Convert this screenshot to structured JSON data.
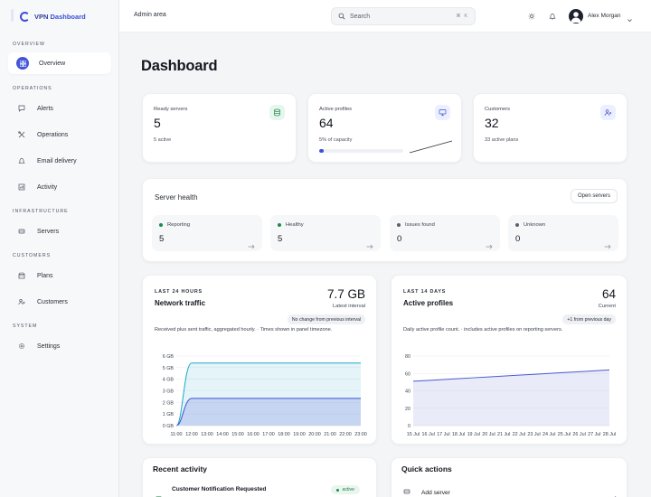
{
  "brand": {
    "name": "VPN",
    "accent": "Dashboard"
  },
  "sidebar": {
    "sections": [
      {
        "title": "OVERVIEW",
        "items": [
          {
            "label": "Overview",
            "icon": "grid-icon",
            "active": true
          }
        ]
      },
      {
        "title": "OPERATIONS",
        "items": [
          {
            "label": "Alerts",
            "icon": "chat-icon"
          },
          {
            "label": "Operations",
            "icon": "tools-icon"
          },
          {
            "label": "Email delivery",
            "icon": "bell-icon"
          },
          {
            "label": "Activity",
            "icon": "chart-icon"
          }
        ]
      },
      {
        "title": "INFRASTRUCTURE",
        "items": [
          {
            "label": "Servers",
            "icon": "server-icon"
          }
        ]
      },
      {
        "title": "CUSTOMERS",
        "items": [
          {
            "label": "Plans",
            "icon": "package-icon"
          },
          {
            "label": "Customers",
            "icon": "users-icon"
          }
        ]
      },
      {
        "title": "SYSTEM",
        "items": [
          {
            "label": "Settings",
            "icon": "gear-icon"
          }
        ]
      }
    ]
  },
  "topbar": {
    "title": "Admin area",
    "search_placeholder": "Search",
    "search_shortcut": "⌘ K",
    "user_name": "Alex Morgan"
  },
  "page": {
    "title": "Dashboard"
  },
  "stats": {
    "ready": {
      "label": "Ready servers",
      "value": "5",
      "sub": "5 active"
    },
    "profiles": {
      "label": "Active profiles",
      "value": "64",
      "sub": "5% of capacity",
      "progress": 0.05
    },
    "customers": {
      "label": "Customers",
      "value": "32",
      "sub": "33 active plans"
    }
  },
  "server_health": {
    "title": "Server health",
    "button": "Open servers",
    "tiles": [
      {
        "label": "Reporting",
        "value": "5",
        "color": "#1f8a4c"
      },
      {
        "label": "Healthy",
        "value": "5",
        "color": "#1f8a4c"
      },
      {
        "label": "Issues found",
        "value": "0",
        "color": "#5a606c"
      },
      {
        "label": "Unknown",
        "value": "0",
        "color": "#5a606c"
      }
    ]
  },
  "network": {
    "eyebrow": "LAST 24 HOURS",
    "title": "Network traffic",
    "big": "7.7 GB",
    "big_sub": "Latest interval",
    "pill": "No change from previous interval",
    "desc_a": "Received plus sent traffic, aggregated hourly.",
    "desc_b": "Times shown in panel timezone."
  },
  "active_profiles_card": {
    "eyebrow": "LAST 14 DAYS",
    "title": "Active profiles",
    "big": "64",
    "big_sub": "Current",
    "pill": "+1 from previous day",
    "desc_a": "Daily active profile count.",
    "desc_b": "includes active profiles on reporting servers."
  },
  "recent": {
    "title": "Recent activity",
    "item_title": "Customer Notification Requested",
    "item_badge": "active"
  },
  "quick": {
    "title": "Quick actions",
    "item": "Add server"
  },
  "chart_data": [
    {
      "type": "area",
      "x": [
        "11:00",
        "12:00",
        "13:00",
        "14:00",
        "15:00",
        "16:00",
        "17:00",
        "18:00",
        "19:00",
        "20:00",
        "21:00",
        "22:00",
        "23:00"
      ],
      "series": [
        {
          "values": [
            0,
            5.4,
            5.4,
            5.4,
            5.4,
            5.4,
            5.4,
            5.4,
            5.4,
            5.4,
            5.4,
            5.4,
            5.4
          ],
          "color": "#1ea7c9"
        },
        {
          "values": [
            0,
            2.35,
            2.35,
            2.35,
            2.35,
            2.35,
            2.35,
            2.35,
            2.35,
            2.35,
            2.35,
            2.35,
            2.35
          ],
          "color": "#3b50d6"
        }
      ],
      "yticks": [
        "0 GB",
        "1 GB",
        "2 GB",
        "3 GB",
        "4 GB",
        "5 GB",
        "6 GB"
      ],
      "ylim": [
        0,
        6
      ]
    },
    {
      "type": "area",
      "x": [
        "15 Jul",
        "16 Jul",
        "17 Jul",
        "18 Jul",
        "19 Jul",
        "20 Jul",
        "21 Jul",
        "22 Jul",
        "23 Jul",
        "24 Jul",
        "25 Jul",
        "26 Jul",
        "27 Jul",
        "28 Jul"
      ],
      "series": [
        {
          "values": [
            51,
            52,
            53,
            54,
            55,
            56,
            57,
            58,
            59,
            60,
            61,
            62,
            63,
            64
          ],
          "color": "#4a5ad0"
        }
      ],
      "yticks": [
        "0",
        "20",
        "40",
        "60",
        "80"
      ],
      "ylim": [
        0,
        80
      ]
    }
  ]
}
